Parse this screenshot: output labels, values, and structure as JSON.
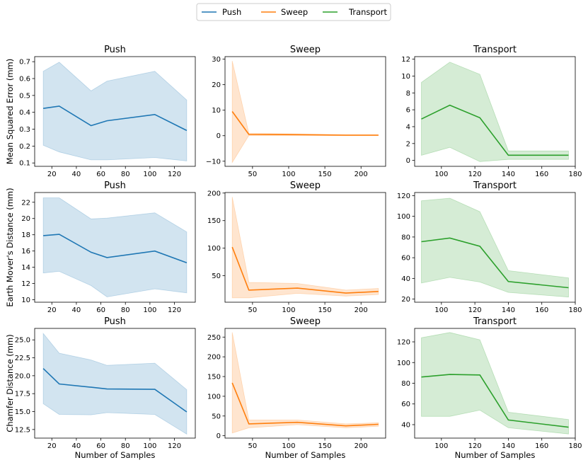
{
  "legend": {
    "entries": [
      {
        "label": "Push",
        "color": "#1f77b4"
      },
      {
        "label": "Sweep",
        "color": "#ff7f0e"
      },
      {
        "label": "Transport",
        "color": "#2ca02c"
      }
    ],
    "placement": "top-center"
  },
  "row_labels": [
    "Mean Squared Error (mm)",
    "Earth Mover's Distance (mm)",
    "Chamfer Distance (mm)"
  ],
  "xlabel": "Number of Samples",
  "chart_data": [
    {
      "type": "line",
      "row": 0,
      "col": 0,
      "title": "Push",
      "color": "#1f77b4",
      "x": [
        13,
        26,
        52,
        65,
        104,
        130
      ],
      "y": [
        0.423,
        0.437,
        0.321,
        0.35,
        0.387,
        0.292
      ],
      "lower": [
        0.205,
        0.165,
        0.118,
        0.118,
        0.132,
        0.112
      ],
      "upper": [
        0.643,
        0.697,
        0.527,
        0.585,
        0.643,
        0.473
      ],
      "xlim": [
        6,
        137
      ],
      "ylim": [
        0.08,
        0.73
      ],
      "xticks": [
        20,
        40,
        60,
        80,
        100,
        120
      ],
      "yticks": [
        0.1,
        0.2,
        0.3,
        0.4,
        0.5,
        0.6,
        0.7
      ],
      "xticklabels": [
        "20",
        "40",
        "60",
        "80",
        "100",
        "120"
      ],
      "yticklabels": [
        "0.1",
        "0.2",
        "0.3",
        "0.4",
        "0.5",
        "0.6",
        "0.7"
      ],
      "ylabel": "Mean Squared Error (mm)",
      "xlabel": ""
    },
    {
      "type": "line",
      "row": 0,
      "col": 1,
      "title": "Sweep",
      "color": "#ff7f0e",
      "x": [
        22,
        45,
        112,
        179,
        224
      ],
      "y": [
        9.5,
        0.5,
        0.4,
        0.2,
        0.2
      ],
      "lower": [
        -10.5,
        0.1,
        0.1,
        0.0,
        0.0
      ],
      "upper": [
        29.3,
        0.9,
        0.7,
        0.4,
        0.4
      ],
      "xlim": [
        12,
        234
      ],
      "ylim": [
        -12,
        31
      ],
      "xticks": [
        50,
        100,
        150,
        200
      ],
      "yticks": [
        -10,
        0,
        10,
        20,
        30
      ],
      "xticklabels": [
        "50",
        "100",
        "150",
        "200"
      ],
      "yticklabels": [
        "−10",
        "0",
        "10",
        "20",
        "30"
      ],
      "ylabel": "",
      "xlabel": ""
    },
    {
      "type": "line",
      "row": 0,
      "col": 2,
      "title": "Transport",
      "color": "#2ca02c",
      "x": [
        88,
        105,
        123,
        140,
        176
      ],
      "y": [
        4.9,
        6.55,
        5.05,
        0.62,
        0.62
      ],
      "lower": [
        0.6,
        1.55,
        -0.15,
        0.12,
        0.12
      ],
      "upper": [
        9.25,
        11.65,
        10.2,
        1.12,
        1.12
      ],
      "xlim": [
        84,
        180
      ],
      "ylim": [
        -0.7,
        12.3
      ],
      "xticks": [
        100,
        120,
        140,
        160,
        180
      ],
      "yticks": [
        0,
        2,
        4,
        6,
        8,
        10,
        12
      ],
      "xticklabels": [
        "100",
        "120",
        "140",
        "160",
        "180"
      ],
      "yticklabels": [
        "0",
        "2",
        "4",
        "6",
        "8",
        "10",
        "12"
      ],
      "ylabel": "",
      "xlabel": ""
    },
    {
      "type": "line",
      "row": 1,
      "col": 0,
      "title": "Push",
      "color": "#1f77b4",
      "x": [
        13,
        26,
        52,
        65,
        104,
        130
      ],
      "y": [
        17.9,
        18.05,
        15.85,
        15.2,
        16.0,
        14.55
      ],
      "lower": [
        13.3,
        13.5,
        11.75,
        10.35,
        11.35,
        10.85
      ],
      "upper": [
        22.55,
        22.55,
        19.95,
        20.05,
        20.7,
        18.35
      ],
      "xlim": [
        6,
        137
      ],
      "ylim": [
        9.7,
        23.2
      ],
      "xticks": [
        20,
        40,
        60,
        80,
        100,
        120
      ],
      "yticks": [
        10,
        12,
        14,
        16,
        18,
        20,
        22
      ],
      "xticklabels": [
        "20",
        "40",
        "60",
        "80",
        "100",
        "120"
      ],
      "yticklabels": [
        "10",
        "12",
        "14",
        "16",
        "18",
        "20",
        "22"
      ],
      "ylabel": "Earth Mover's Distance (mm)",
      "xlabel": ""
    },
    {
      "type": "line",
      "row": 1,
      "col": 1,
      "title": "Sweep",
      "color": "#ff7f0e",
      "x": [
        22,
        45,
        112,
        179,
        224
      ],
      "y": [
        102,
        24,
        27.5,
        18.5,
        21.5
      ],
      "lower": [
        10,
        10,
        18,
        13,
        16
      ],
      "upper": [
        193,
        38,
        36,
        24,
        27
      ],
      "xlim": [
        12,
        234
      ],
      "ylim": [
        2,
        201
      ],
      "xticks": [
        50,
        100,
        150,
        200
      ],
      "yticks": [
        50,
        100,
        150,
        200
      ],
      "xticklabels": [
        "50",
        "100",
        "150",
        "200"
      ],
      "yticklabels": [
        "50",
        "100",
        "150",
        "200"
      ],
      "ylabel": "",
      "xlabel": ""
    },
    {
      "type": "line",
      "row": 1,
      "col": 2,
      "title": "Transport",
      "color": "#2ca02c",
      "x": [
        88,
        105,
        123,
        140,
        176
      ],
      "y": [
        75.5,
        79,
        71,
        37,
        31
      ],
      "lower": [
        35.5,
        41,
        36.5,
        26.5,
        22
      ],
      "upper": [
        115,
        117.5,
        104.5,
        47.5,
        40.5
      ],
      "xlim": [
        84,
        180
      ],
      "ylim": [
        17,
        123
      ],
      "xticks": [
        100,
        120,
        140,
        160,
        180
      ],
      "yticks": [
        20,
        40,
        60,
        80,
        100,
        120
      ],
      "xticklabels": [
        "100",
        "120",
        "140",
        "160",
        "180"
      ],
      "yticklabels": [
        "20",
        "40",
        "60",
        "80",
        "100",
        "120"
      ],
      "ylabel": "",
      "xlabel": ""
    },
    {
      "type": "line",
      "row": 2,
      "col": 0,
      "title": "Push",
      "color": "#1f77b4",
      "x": [
        13,
        26,
        52,
        65,
        104,
        130
      ],
      "y": [
        21.0,
        18.85,
        18.4,
        18.15,
        18.1,
        14.95
      ],
      "lower": [
        16.1,
        14.6,
        14.55,
        14.85,
        14.6,
        11.85
      ],
      "upper": [
        25.9,
        23.15,
        22.2,
        21.45,
        21.75,
        18.05
      ],
      "xlim": [
        6,
        137
      ],
      "ylim": [
        11.3,
        26.6
      ],
      "xticks": [
        20,
        40,
        60,
        80,
        100,
        120
      ],
      "yticks": [
        12.5,
        15.0,
        17.5,
        20.0,
        22.5,
        25.0
      ],
      "xticklabels": [
        "20",
        "40",
        "60",
        "80",
        "100",
        "120"
      ],
      "yticklabels": [
        "12.5",
        "15.0",
        "17.5",
        "20.0",
        "22.5",
        "25.0"
      ],
      "ylabel": "Chamfer Distance (mm)",
      "xlabel": "Number of Samples"
    },
    {
      "type": "line",
      "row": 2,
      "col": 1,
      "title": "Sweep",
      "color": "#ff7f0e",
      "x": [
        22,
        45,
        112,
        179,
        224
      ],
      "y": [
        134,
        30,
        34,
        25,
        29
      ],
      "lower": [
        7,
        20,
        28,
        20,
        24
      ],
      "upper": [
        262,
        40,
        40,
        30,
        33
      ],
      "xlim": [
        12,
        234
      ],
      "ylim": [
        -6,
        272
      ],
      "xticks": [
        50,
        100,
        150,
        200
      ],
      "yticks": [
        0,
        50,
        100,
        150,
        200,
        250
      ],
      "xticklabels": [
        "50",
        "100",
        "150",
        "200"
      ],
      "yticklabels": [
        "0",
        "50",
        "100",
        "150",
        "200",
        "250"
      ],
      "ylabel": "",
      "xlabel": "Number of Samples"
    },
    {
      "type": "line",
      "row": 2,
      "col": 2,
      "title": "Transport",
      "color": "#2ca02c",
      "x": [
        88,
        105,
        123,
        140,
        176
      ],
      "y": [
        86,
        88.5,
        88,
        44.5,
        37.5
      ],
      "lower": [
        48,
        48,
        54,
        37,
        31
      ],
      "upper": [
        124,
        129,
        122,
        52,
        45
      ],
      "xlim": [
        84,
        180
      ],
      "ylim": [
        27,
        133
      ],
      "xticks": [
        100,
        120,
        140,
        160,
        180
      ],
      "yticks": [
        40,
        60,
        80,
        100,
        120
      ],
      "xticklabels": [
        "100",
        "120",
        "140",
        "160",
        "180"
      ],
      "yticklabels": [
        "40",
        "60",
        "80",
        "100",
        "120"
      ],
      "ylabel": "",
      "xlabel": "Number of Samples"
    }
  ]
}
